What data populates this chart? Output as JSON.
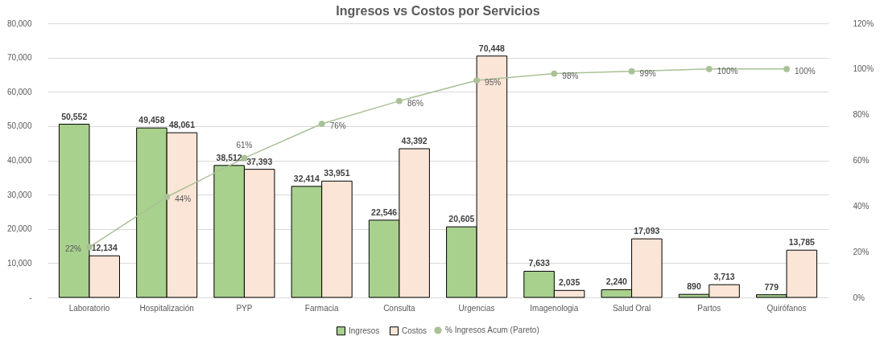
{
  "chart_data": {
    "type": "bar",
    "title": "Ingresos vs Costos por Servicios",
    "categories": [
      "Laboratorio",
      "Hospitalización",
      "PYP",
      "Farmacia",
      "Consulta",
      "Urgencias",
      "Imagenologia",
      "Salud Oral",
      "Partos",
      "Quirófanos"
    ],
    "series": [
      {
        "name": "Ingresos",
        "color": "#a9d18e",
        "values": [
          50552,
          49458,
          38512,
          32414,
          22546,
          20605,
          7633,
          2240,
          890,
          779
        ],
        "value_labels": [
          "50,552",
          "49,458",
          "38,512",
          "32,414",
          "22,546",
          "20,605",
          "7,633",
          "2,240",
          "890",
          "779"
        ]
      },
      {
        "name": "Costos",
        "color": "#fbe5d6",
        "values": [
          12134,
          48061,
          37393,
          33951,
          43392,
          70448,
          2035,
          17093,
          3713,
          13785
        ],
        "value_labels": [
          "12,134",
          "48,061",
          "37,393",
          "33,951",
          "43,392",
          "70,448",
          "2,035",
          "17,093",
          "3,713",
          "13,785"
        ]
      },
      {
        "name": "% Ingresos Acum (Pareto)",
        "type": "line",
        "axis": "y2",
        "marker": "circle",
        "color": "#a9c196",
        "values": [
          22,
          44,
          61,
          76,
          86,
          95,
          98,
          99,
          100,
          100
        ],
        "value_labels": [
          "22%",
          "44%",
          "61%",
          "76%",
          "86%",
          "95%",
          "98%",
          "99%",
          "100%",
          "100%"
        ]
      }
    ],
    "ylim": [
      0,
      80000
    ],
    "yticks": [
      {
        "value": 0,
        "label": "-"
      },
      {
        "value": 10000,
        "label": "10,000"
      },
      {
        "value": 20000,
        "label": "20,000"
      },
      {
        "value": 30000,
        "label": "30,000"
      },
      {
        "value": 40000,
        "label": "40,000"
      },
      {
        "value": 50000,
        "label": "50,000"
      },
      {
        "value": 60000,
        "label": "60,000"
      },
      {
        "value": 70000,
        "label": "70,000"
      },
      {
        "value": 80000,
        "label": "80,000"
      }
    ],
    "y2lim": [
      0,
      120
    ],
    "y2ticks": [
      {
        "value": 0,
        "label": "0%"
      },
      {
        "value": 20,
        "label": "20%"
      },
      {
        "value": 40,
        "label": "40%"
      },
      {
        "value": 60,
        "label": "60%"
      },
      {
        "value": 80,
        "label": "80%"
      },
      {
        "value": 100,
        "label": "100%"
      },
      {
        "value": 120,
        "label": "120%"
      }
    ],
    "grid": "y",
    "legend": "bottom"
  }
}
